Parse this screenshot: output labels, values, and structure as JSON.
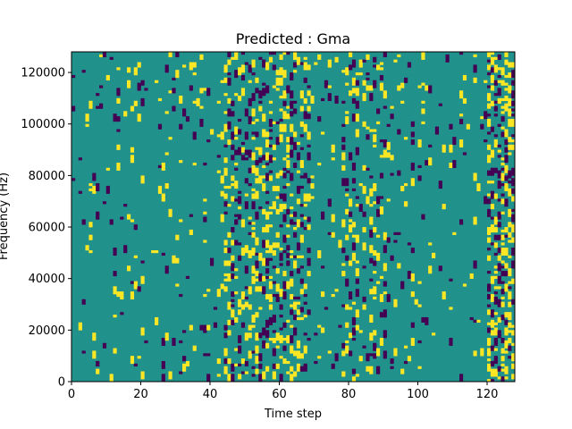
{
  "chart_data": {
    "type": "heatmap",
    "title": "Predicted : Gma",
    "xlabel": "Time step",
    "ylabel": "Frequency (Hz)",
    "xlim": [
      0,
      128
    ],
    "ylim": [
      0,
      128000
    ],
    "xticks": [
      0,
      20,
      40,
      60,
      80,
      100,
      120
    ],
    "yticks": [
      0,
      20000,
      40000,
      60000,
      80000,
      100000,
      120000
    ],
    "colormap": "viridis",
    "value_colors": {
      "low": "#440154",
      "mid": "#21918c",
      "high": "#fde725"
    },
    "background_value": "mid",
    "cells_description": "Sparse grid of 128 time steps x 128 frequency bins (1000 Hz each). Most cells are mid value; scattered cells are low (dark purple) or high (yellow), densest around time steps 45-68, 80-88 and 120-128.",
    "grid": false
  }
}
